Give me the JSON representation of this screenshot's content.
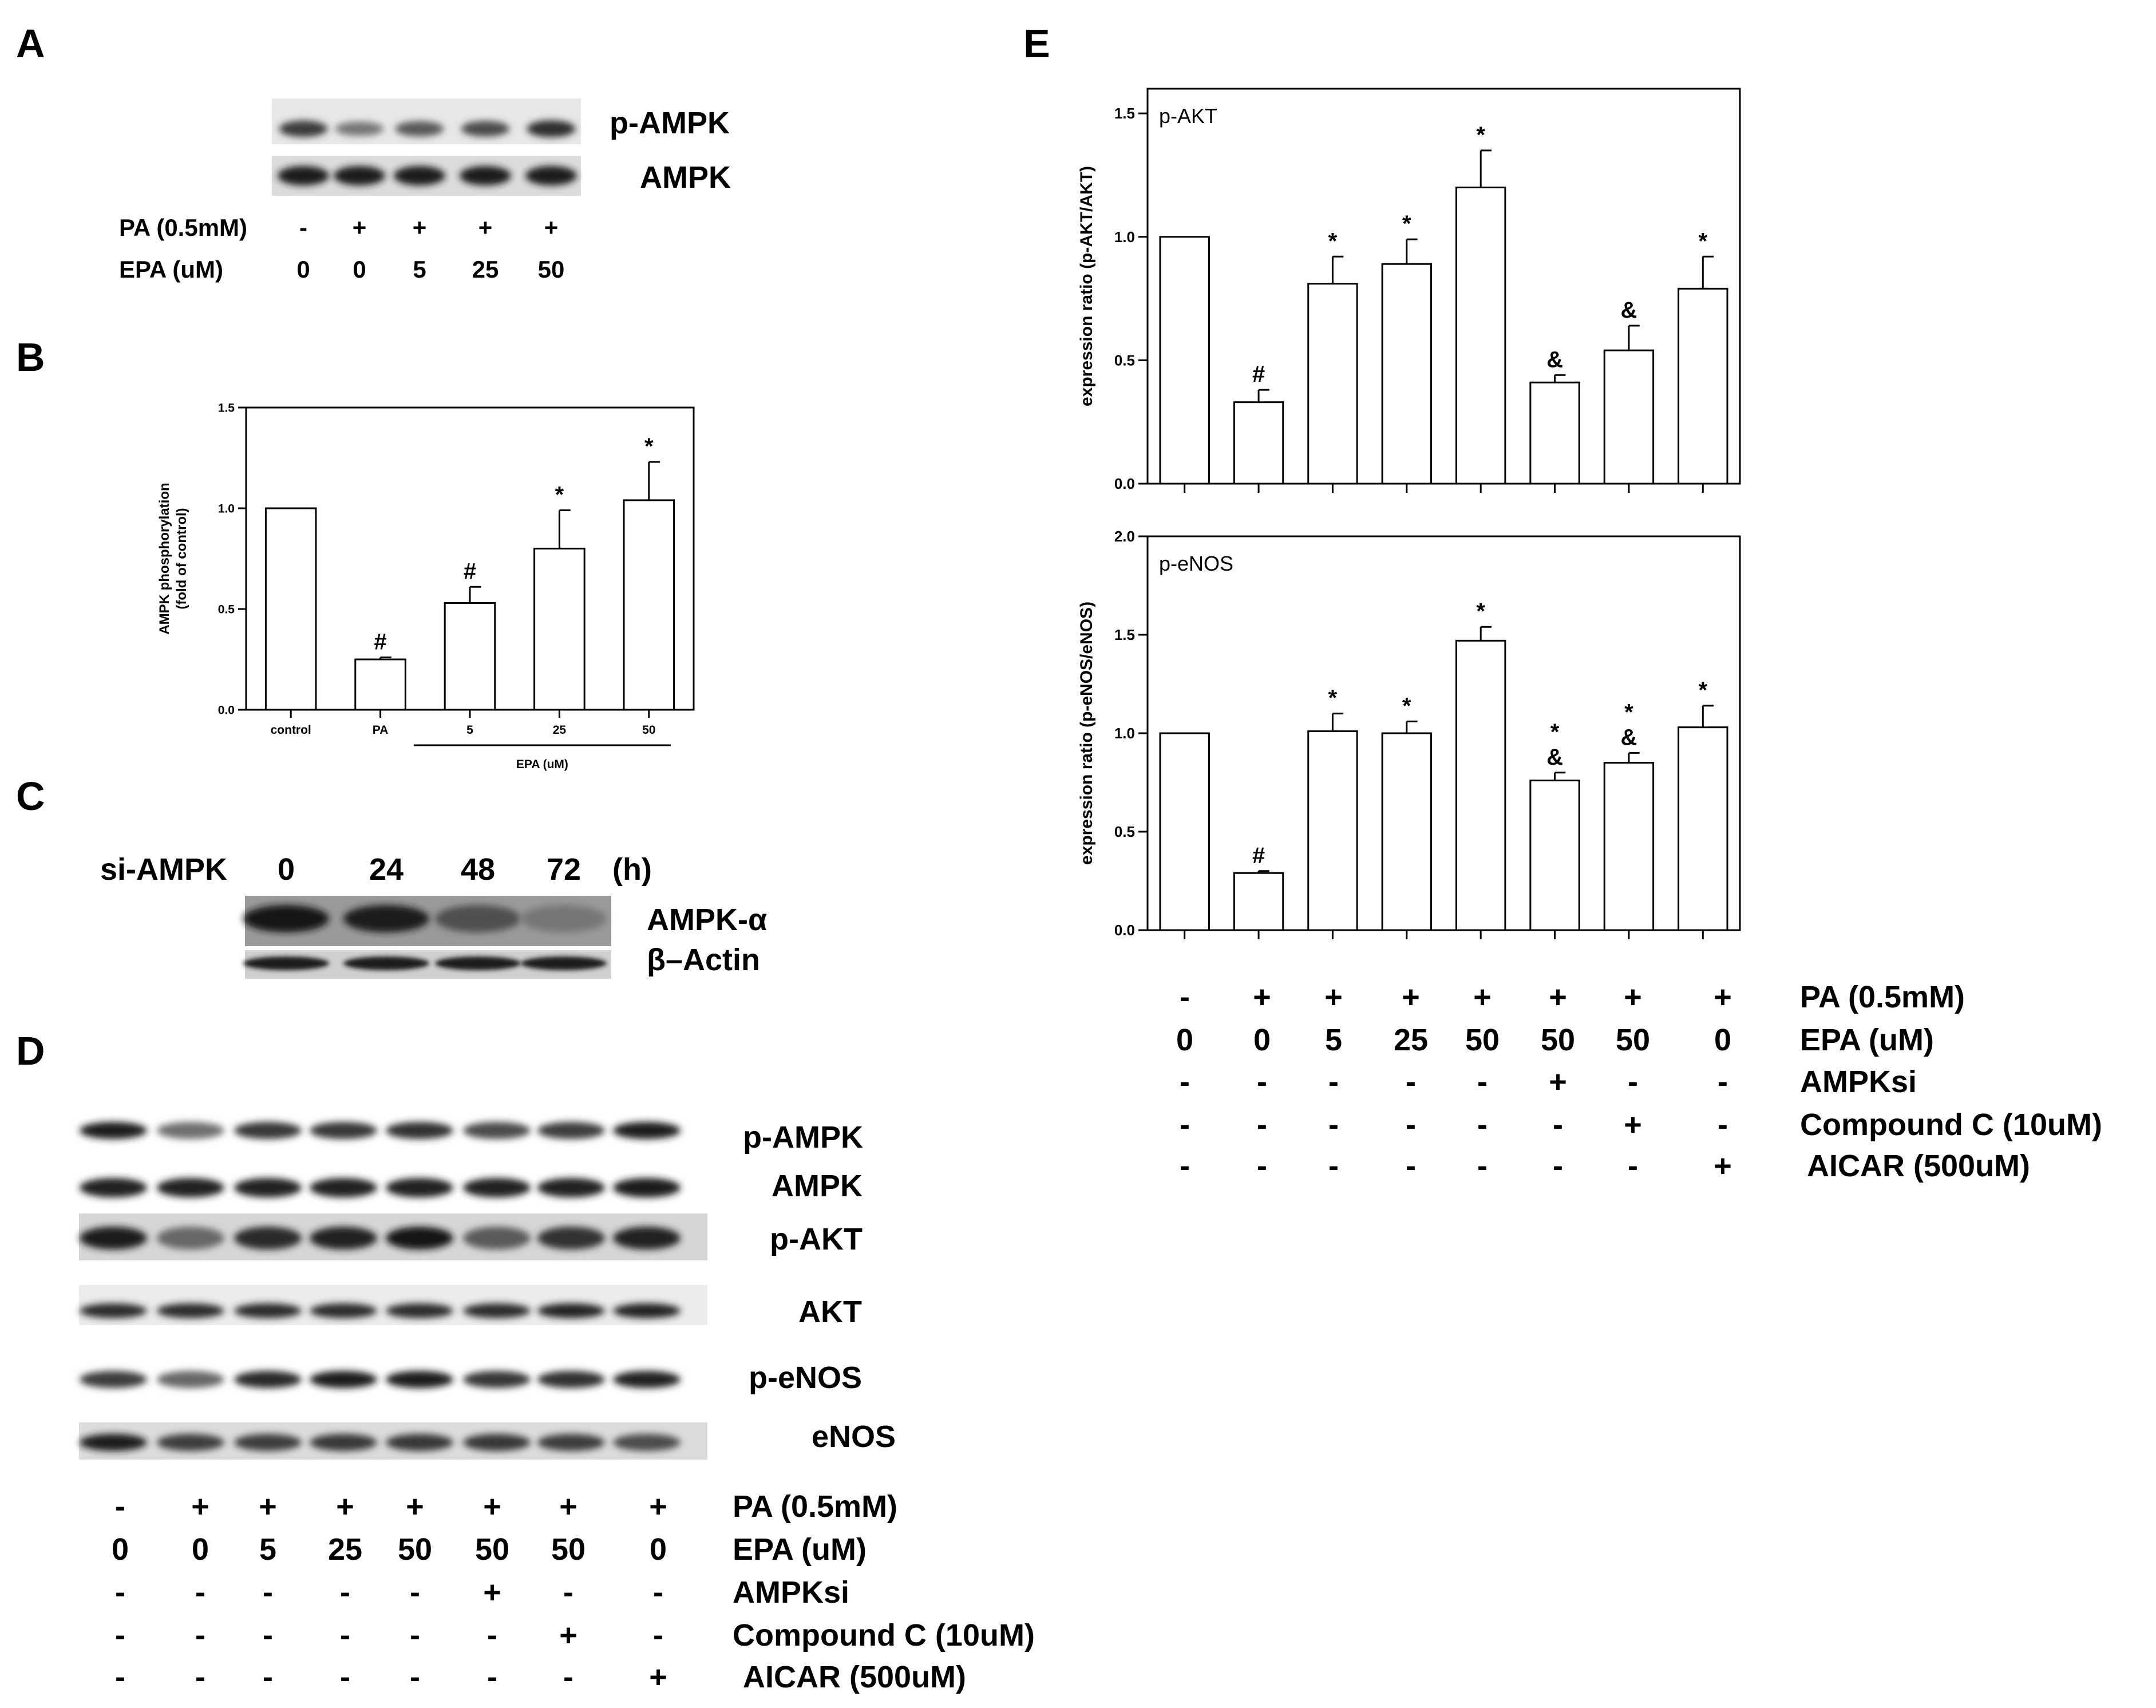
{
  "panels": {
    "A": "A",
    "B": "B",
    "C": "C",
    "D": "D",
    "E": "E"
  },
  "panel_a": {
    "bands": [
      "p-AMPK",
      "AMPK"
    ],
    "conditions": [
      {
        "label": "PA (0.5mM)",
        "values": [
          "-",
          "+",
          "+",
          "+",
          "+"
        ]
      },
      {
        "label": "EPA (uM)",
        "values": [
          "0",
          "0",
          "5",
          "25",
          "50"
        ]
      }
    ]
  },
  "panel_c": {
    "label": "si-AMPK",
    "timepoints": [
      "0",
      "24",
      "48",
      "72"
    ],
    "unit": "(h)",
    "bands": [
      "AMPK-α",
      "β–Actin"
    ]
  },
  "panel_d": {
    "bands": [
      "p-AMPK",
      "AMPK",
      "p-AKT",
      "AKT",
      "p-eNOS",
      "eNOS"
    ],
    "conditions": [
      {
        "label": "PA (0.5mM)",
        "values": [
          "-",
          "+",
          "+",
          "+",
          "+",
          "+",
          "+",
          "+"
        ]
      },
      {
        "label": "EPA (uM)",
        "values": [
          "0",
          "0",
          "5",
          "25",
          "50",
          "50",
          "50",
          "0"
        ]
      },
      {
        "label": "AMPKsi",
        "values": [
          "-",
          "-",
          "-",
          "-",
          "-",
          "+",
          "-",
          "-"
        ]
      },
      {
        "label": "Compound C (10uM)",
        "values": [
          "-",
          "-",
          "-",
          "-",
          "-",
          "-",
          "+",
          "-"
        ]
      },
      {
        "label": "AICAR (500uM)",
        "values": [
          "-",
          "-",
          "-",
          "-",
          "-",
          "-",
          "-",
          "+"
        ]
      }
    ]
  },
  "panel_e_conditions": [
    {
      "label": "PA (0.5mM)",
      "values": [
        "-",
        "+",
        "+",
        "+",
        "+",
        "+",
        "+",
        "+"
      ]
    },
    {
      "label": "EPA (uM)",
      "values": [
        "0",
        "0",
        "5",
        "25",
        "50",
        "50",
        "50",
        "0"
      ]
    },
    {
      "label": "AMPKsi",
      "values": [
        "-",
        "-",
        "-",
        "-",
        "-",
        "+",
        "-",
        "-"
      ]
    },
    {
      "label": "Compound C (10uM)",
      "values": [
        "-",
        "-",
        "-",
        "-",
        "-",
        "-",
        "+",
        "-"
      ]
    },
    {
      "label": "AICAR (500uM)",
      "values": [
        "-",
        "-",
        "-",
        "-",
        "-",
        "-",
        "-",
        "+"
      ]
    }
  ],
  "chart_data": [
    {
      "id": "B",
      "type": "bar",
      "ylabel": "AMPK phosphorylation\n(fold of control)",
      "ylim": [
        0,
        1.5
      ],
      "yticks": [
        "0.0",
        "0.5",
        "1.0",
        "1.5"
      ],
      "categories": [
        "control",
        "PA",
        "5",
        "25",
        "50"
      ],
      "group_label": "EPA (uM)",
      "values": [
        1.0,
        0.25,
        0.53,
        0.8,
        1.04
      ],
      "errors": [
        0,
        0.01,
        0.08,
        0.19,
        0.19
      ],
      "markers": [
        "",
        "#",
        "#",
        "*",
        "*"
      ]
    },
    {
      "id": "E1",
      "type": "bar",
      "title": "p-AKT",
      "ylabel": "expression ratio (p-AKT/AKT)",
      "ylim": [
        0,
        1.6
      ],
      "yticks": [
        "0.0",
        "0.5",
        "1.0",
        "1.5"
      ],
      "values": [
        1.0,
        0.33,
        0.81,
        0.89,
        1.2,
        0.41,
        0.54,
        0.79
      ],
      "errors": [
        0,
        0.05,
        0.11,
        0.1,
        0.15,
        0.03,
        0.1,
        0.13
      ],
      "markers": [
        [],
        [
          "#"
        ],
        [
          "*"
        ],
        [
          "*"
        ],
        [
          "*"
        ],
        [
          "&"
        ],
        [
          "&"
        ],
        [
          "*"
        ]
      ]
    },
    {
      "id": "E2",
      "type": "bar",
      "title": "p-eNOS",
      "ylabel": "expression ratio (p-eNOS/eNOS)",
      "ylim": [
        0,
        2.0
      ],
      "yticks": [
        "0.0",
        "0.5",
        "1.0",
        "1.5",
        "2.0"
      ],
      "values": [
        1.0,
        0.29,
        1.01,
        1.0,
        1.47,
        0.76,
        0.85,
        1.03
      ],
      "errors": [
        0,
        0.01,
        0.09,
        0.06,
        0.07,
        0.04,
        0.05,
        0.11
      ],
      "markers": [
        [],
        [
          "#"
        ],
        [
          "*"
        ],
        [
          "*"
        ],
        [
          "*"
        ],
        [
          "*",
          "&"
        ],
        [
          "*",
          "&"
        ],
        [
          "*"
        ]
      ]
    }
  ]
}
